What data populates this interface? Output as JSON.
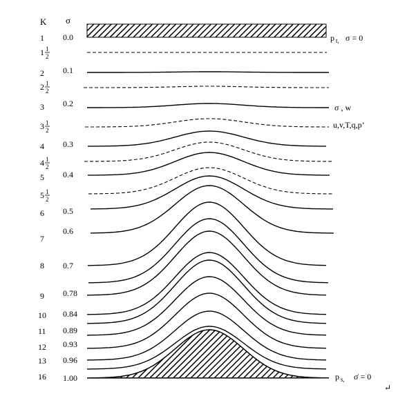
{
  "headers": {
    "k": "K",
    "sigma": "σ"
  },
  "levels": [
    {
      "k": "1",
      "frac": false,
      "sigma": "0.0",
      "style": "top"
    },
    {
      "k": "1",
      "frac": true,
      "sigma": "",
      "style": "dashed"
    },
    {
      "k": "2",
      "frac": false,
      "sigma": "0.1",
      "style": "solid"
    },
    {
      "k": "2",
      "frac": true,
      "sigma": "",
      "style": "dashed"
    },
    {
      "k": "3",
      "frac": false,
      "sigma": "0.2",
      "style": "solid"
    },
    {
      "k": "3",
      "frac": true,
      "sigma": "",
      "style": "dashed"
    },
    {
      "k": "4",
      "frac": false,
      "sigma": "0.3",
      "style": "solid"
    },
    {
      "k": "4",
      "frac": true,
      "sigma": "",
      "style": "dashed"
    },
    {
      "k": "5",
      "frac": false,
      "sigma": "0.4",
      "style": "solid"
    },
    {
      "k": "5",
      "frac": true,
      "sigma": "",
      "style": "dashed"
    },
    {
      "k": "6",
      "frac": false,
      "sigma": "0.5",
      "style": "solid"
    },
    {
      "k": "",
      "frac": false,
      "sigma": "0.6",
      "style": "solid"
    },
    {
      "k": "7",
      "frac": false,
      "sigma": "",
      "style": "none"
    },
    {
      "k": "8",
      "frac": false,
      "sigma": "0.7",
      "style": "solid"
    },
    {
      "k": "",
      "frac": false,
      "sigma": "",
      "style": "solid"
    },
    {
      "k": "9",
      "frac": false,
      "sigma": "0.78",
      "style": "solid"
    },
    {
      "k": "10",
      "frac": false,
      "sigma": "0.84",
      "style": "solid"
    },
    {
      "k": "",
      "frac": false,
      "sigma": "",
      "style": "solid"
    },
    {
      "k": "11",
      "frac": false,
      "sigma": "0.89",
      "style": "solid"
    },
    {
      "k": "12",
      "frac": false,
      "sigma": "0.93",
      "style": "solid"
    },
    {
      "k": "13",
      "frac": false,
      "sigma": "0.96",
      "style": "solid"
    },
    {
      "k": "",
      "frac": false,
      "sigma": "",
      "style": "solid"
    },
    {
      "k": "16",
      "frac": false,
      "sigma": "1.00",
      "style": "surface"
    }
  ],
  "half": {
    "numerator": "1",
    "denominator": "2"
  },
  "annotations": {
    "top_p": "p",
    "top_sub": "t,",
    "top_cond": "σ = 0",
    "sigma_w": "σ , w",
    "vars": "u,v,T,q,p’",
    "surf_p": "p",
    "surf_sub": "s,",
    "surf_cond": "σ̇ = 0",
    "return_mark": "↵"
  }
}
